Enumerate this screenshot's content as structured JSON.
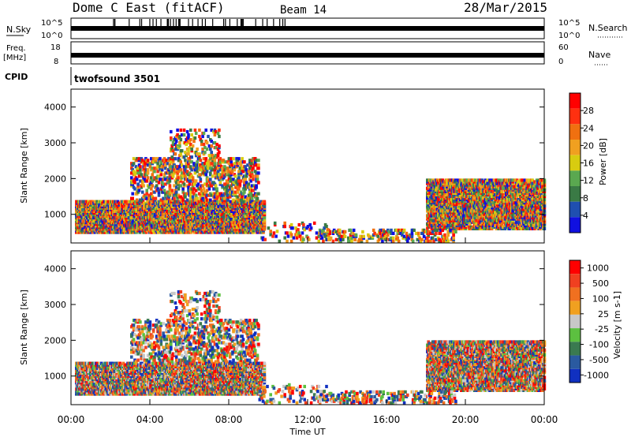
{
  "header": {
    "title": "Dome C East (fitACF)",
    "beam": "Beam 14",
    "date": "28/Mar/2015"
  },
  "strips": {
    "nsky_label": "N.Sky",
    "nsky_ticks": [
      "10^5",
      "10^0"
    ],
    "nsearch_label": "N.Search",
    "nsearch_ticks": [
      "10^5",
      "10^0"
    ],
    "freq_label_1": "Freq.",
    "freq_label_2": "[MHz]",
    "freq_ticks": [
      "18",
      "8"
    ],
    "nave_label": "Nave",
    "nave_ticks": [
      "60",
      "0"
    ],
    "cpid_label": "CPID",
    "cpid_value": "twofsound 3501"
  },
  "colors": {
    "power_scale": [
      "#1010e0",
      "#1f4fb0",
      "#3a7a45",
      "#5aa850",
      "#d8cc10",
      "#f0a020",
      "#f07010",
      "#ff3010",
      "#ff0000"
    ],
    "velocity_scale": [
      "#1030c0",
      "#2a5aa0",
      "#3a7a50",
      "#5cc040",
      "#c8c8c8",
      "#f0a020",
      "#f07020",
      "#f04020",
      "#ff0000"
    ]
  },
  "chart_data": [
    {
      "type": "heatmap",
      "title": "",
      "ylabel": "Slant Range [km]",
      "xlabel": "",
      "x_range_hours": [
        0,
        24
      ],
      "ylim": [
        200,
        4500
      ],
      "y_ticks": [
        "1000",
        "2000",
        "3000",
        "4000"
      ],
      "x_ticks": [
        "00:00",
        "04:00",
        "08:00",
        "12:00",
        "16:00",
        "20:00",
        "00:00"
      ],
      "colorbar_label": "Power [dB]",
      "colorbar_ticks": [
        "4",
        "8",
        "12",
        "16",
        "20",
        "24",
        "28"
      ]
    },
    {
      "type": "heatmap",
      "title": "",
      "ylabel": "Slant Range [km]",
      "xlabel": "Time UT",
      "x_range_hours": [
        0,
        24
      ],
      "ylim": [
        200,
        4500
      ],
      "y_ticks": [
        "1000",
        "2000",
        "3000",
        "4000"
      ],
      "x_ticks": [
        "00:00",
        "04:00",
        "08:00",
        "12:00",
        "16:00",
        "20:00",
        "00:00"
      ],
      "colorbar_label": "Velocity [m s-1]",
      "colorbar_ticks": [
        "1000",
        "500",
        "100",
        "25",
        "-25",
        "-100",
        "-500",
        "-1000"
      ]
    }
  ]
}
